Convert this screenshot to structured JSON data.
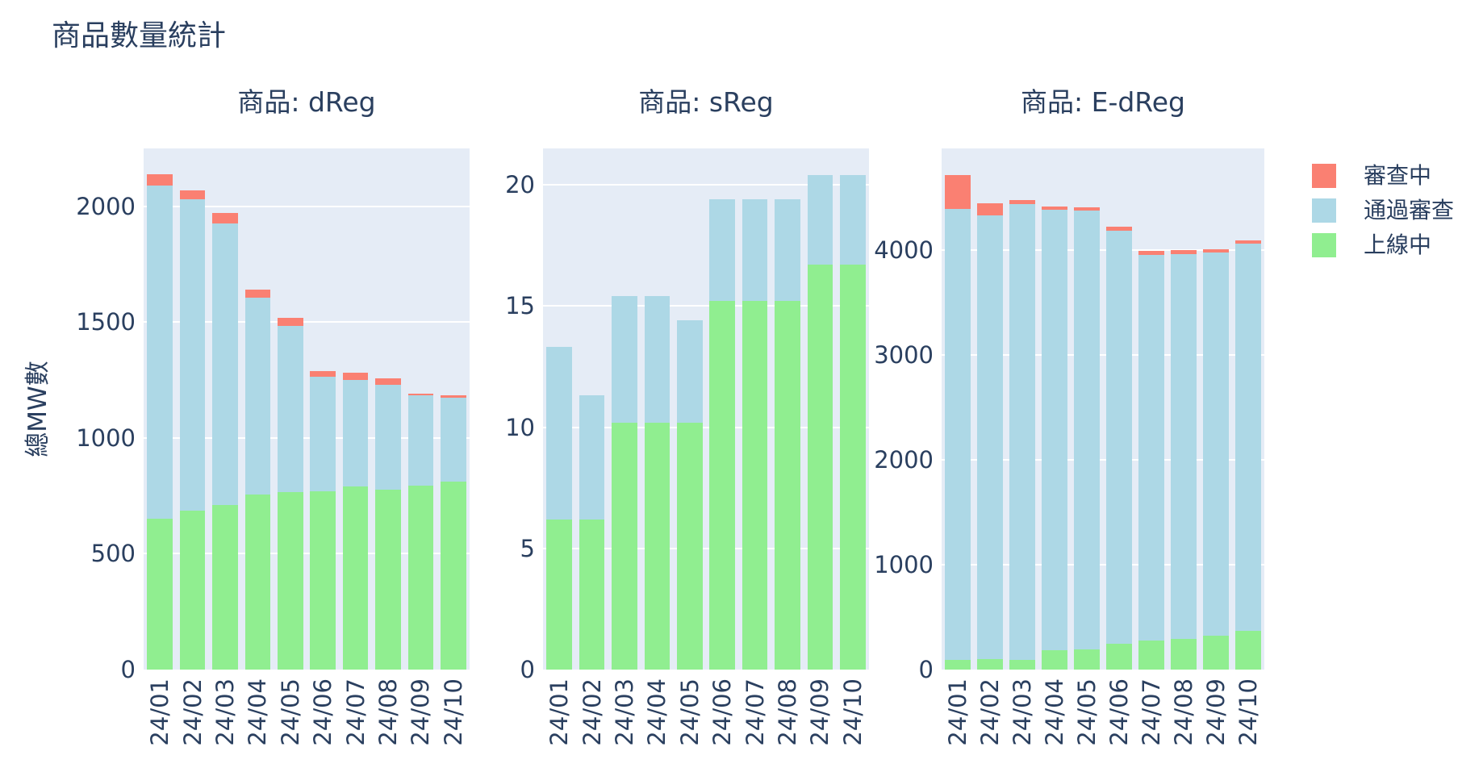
{
  "page": {
    "title": "商品數量統計"
  },
  "colors": {
    "審查中": "#fa8072",
    "通過審查": "#add8e6",
    "上線中": "#90ee90",
    "plot_background": "#e5ecf6",
    "grid": "#ffffff",
    "text": "#2a3f5f"
  },
  "legend": {
    "position": "top-right",
    "items": [
      {
        "label": "審查中",
        "color_key": "審查中"
      },
      {
        "label": "通過審查",
        "color_key": "通過審查"
      },
      {
        "label": "上線中",
        "color_key": "上線中"
      }
    ]
  },
  "chart_data": [
    {
      "type": "bar",
      "stacked": true,
      "title": "商品: dReg",
      "xlabel": "",
      "ylabel": "總MW數",
      "grid": true,
      "categories": [
        "24/01",
        "24/02",
        "24/03",
        "24/04",
        "24/05",
        "24/06",
        "24/07",
        "24/08",
        "24/09",
        "24/10"
      ],
      "yticks": [
        0,
        500,
        1000,
        1500,
        2000
      ],
      "ylim": [
        0,
        2250
      ],
      "series": [
        {
          "name": "上線中",
          "values": [
            650,
            685,
            710,
            755,
            765,
            770,
            790,
            778,
            795,
            810
          ]
        },
        {
          "name": "通過審查",
          "values": [
            1440,
            1345,
            1215,
            850,
            720,
            495,
            460,
            450,
            390,
            365
          ]
        },
        {
          "name": "審查中",
          "values": [
            50,
            40,
            45,
            35,
            35,
            25,
            30,
            30,
            6,
            8
          ]
        }
      ]
    },
    {
      "type": "bar",
      "stacked": true,
      "title": "商品: sReg",
      "xlabel": "",
      "ylabel": "",
      "grid": true,
      "categories": [
        "24/01",
        "24/02",
        "24/03",
        "24/04",
        "24/05",
        "24/06",
        "24/07",
        "24/08",
        "24/09",
        "24/10"
      ],
      "yticks": [
        0,
        5,
        10,
        15,
        20
      ],
      "ylim": [
        0,
        21.5
      ],
      "series": [
        {
          "name": "上線中",
          "values": [
            6.2,
            6.2,
            10.2,
            10.2,
            10.2,
            15.2,
            15.2,
            15.2,
            16.7,
            16.7
          ]
        },
        {
          "name": "通過審查",
          "values": [
            7.1,
            5.1,
            5.2,
            5.2,
            4.2,
            4.2,
            4.2,
            4.2,
            3.7,
            3.7
          ]
        },
        {
          "name": "審查中",
          "values": [
            0,
            0,
            0,
            0,
            0,
            0,
            0,
            0,
            0,
            0
          ]
        }
      ]
    },
    {
      "type": "bar",
      "stacked": true,
      "title": "商品: E-dReg",
      "xlabel": "",
      "ylabel": "",
      "grid": true,
      "categories": [
        "24/01",
        "24/02",
        "24/03",
        "24/04",
        "24/05",
        "24/06",
        "24/07",
        "24/08",
        "24/09",
        "24/10"
      ],
      "yticks": [
        0,
        1000,
        2000,
        3000,
        4000
      ],
      "ylim": [
        0,
        4970
      ],
      "series": [
        {
          "name": "上線中",
          "values": [
            90,
            100,
            95,
            185,
            190,
            250,
            280,
            290,
            325,
            370
          ]
        },
        {
          "name": "通過審查",
          "values": [
            4300,
            4235,
            4345,
            4200,
            4185,
            3935,
            3675,
            3675,
            3650,
            3695
          ]
        },
        {
          "name": "審查中",
          "values": [
            325,
            115,
            35,
            30,
            35,
            35,
            35,
            35,
            30,
            30
          ]
        }
      ]
    }
  ]
}
